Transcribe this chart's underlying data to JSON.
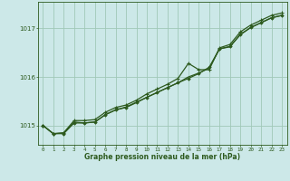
{
  "title": "Graphe pression niveau de la mer (hPa)",
  "background_color": "#cce8e8",
  "grid_color": "#a0c8b8",
  "line_color": "#2d5a1e",
  "xlim": [
    -0.5,
    23.5
  ],
  "ylim": [
    1014.6,
    1017.55
  ],
  "yticks": [
    1015,
    1016,
    1017
  ],
  "xticks": [
    0,
    1,
    2,
    3,
    4,
    5,
    6,
    7,
    8,
    9,
    10,
    11,
    12,
    13,
    14,
    15,
    16,
    17,
    18,
    19,
    20,
    21,
    22,
    23
  ],
  "series1_main": [
    1015.0,
    1014.83,
    1014.83,
    1015.05,
    1015.05,
    1015.07,
    1015.22,
    1015.32,
    1015.37,
    1015.47,
    1015.58,
    1015.68,
    1015.78,
    1015.88,
    1015.97,
    1016.07,
    1016.2,
    1016.58,
    1016.63,
    1016.87,
    1017.02,
    1017.12,
    1017.22,
    1017.27
  ],
  "series2_upper": [
    1015.0,
    1014.83,
    1014.85,
    1015.1,
    1015.1,
    1015.12,
    1015.27,
    1015.37,
    1015.42,
    1015.52,
    1015.65,
    1015.75,
    1015.85,
    1015.97,
    1016.28,
    1016.15,
    1016.15,
    1016.6,
    1016.67,
    1016.93,
    1017.07,
    1017.17,
    1017.27,
    1017.32
  ],
  "series3_smooth": [
    1015.0,
    1014.83,
    1014.84,
    1015.07,
    1015.05,
    1015.07,
    1015.22,
    1015.32,
    1015.38,
    1015.48,
    1015.58,
    1015.68,
    1015.78,
    1015.88,
    1016.0,
    1016.08,
    1016.18,
    1016.58,
    1016.62,
    1016.88,
    1017.02,
    1017.12,
    1017.22,
    1017.27
  ]
}
